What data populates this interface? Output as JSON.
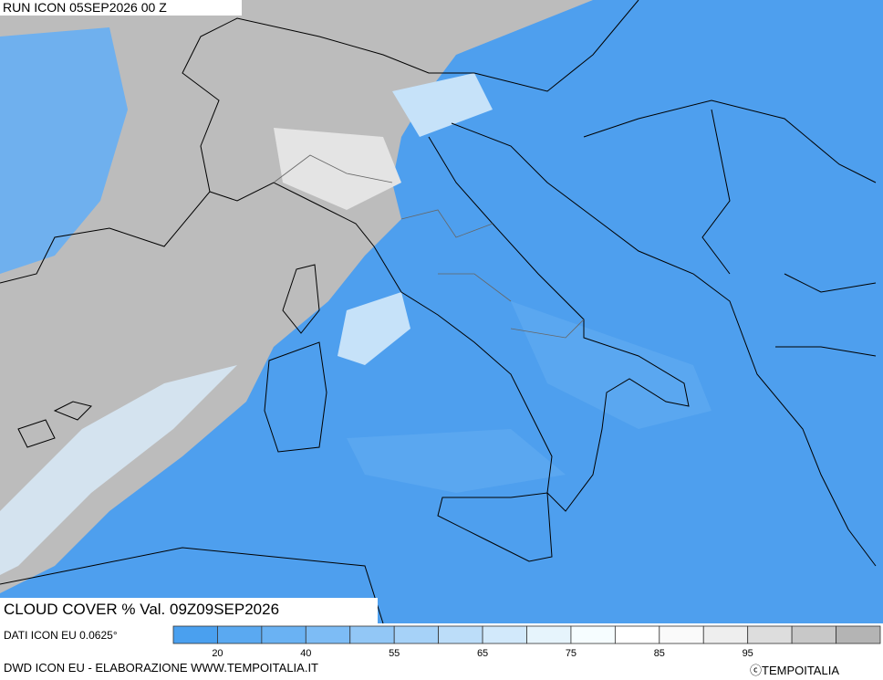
{
  "header": {
    "run": "RUN ICON 05SEP2026 00 Z"
  },
  "title": "CLOUD COVER % Val. 09Z09SEP2026",
  "source": "DATI ICON EU 0.0625°",
  "legend": {
    "colors": [
      "#4aa0ef",
      "#5aa9f1",
      "#6ab2f3",
      "#7dbcf5",
      "#92c7f6",
      "#a6d2f8",
      "#bcddf9",
      "#d2e9fb",
      "#e6f4fc",
      "#f6fdff",
      "#ffffff",
      "#fafafa",
      "#eeeeee",
      "#dddddd",
      "#c8c8c8",
      "#b4b4b4"
    ],
    "ticks": [
      20,
      40,
      55,
      65,
      75,
      85,
      95
    ]
  },
  "footer": {
    "credit": "DWD ICON EU - ELABORAZIONE WWW.TEMPOITALIA.IT",
    "brand": "ⓒTEMPOITALIA"
  }
}
